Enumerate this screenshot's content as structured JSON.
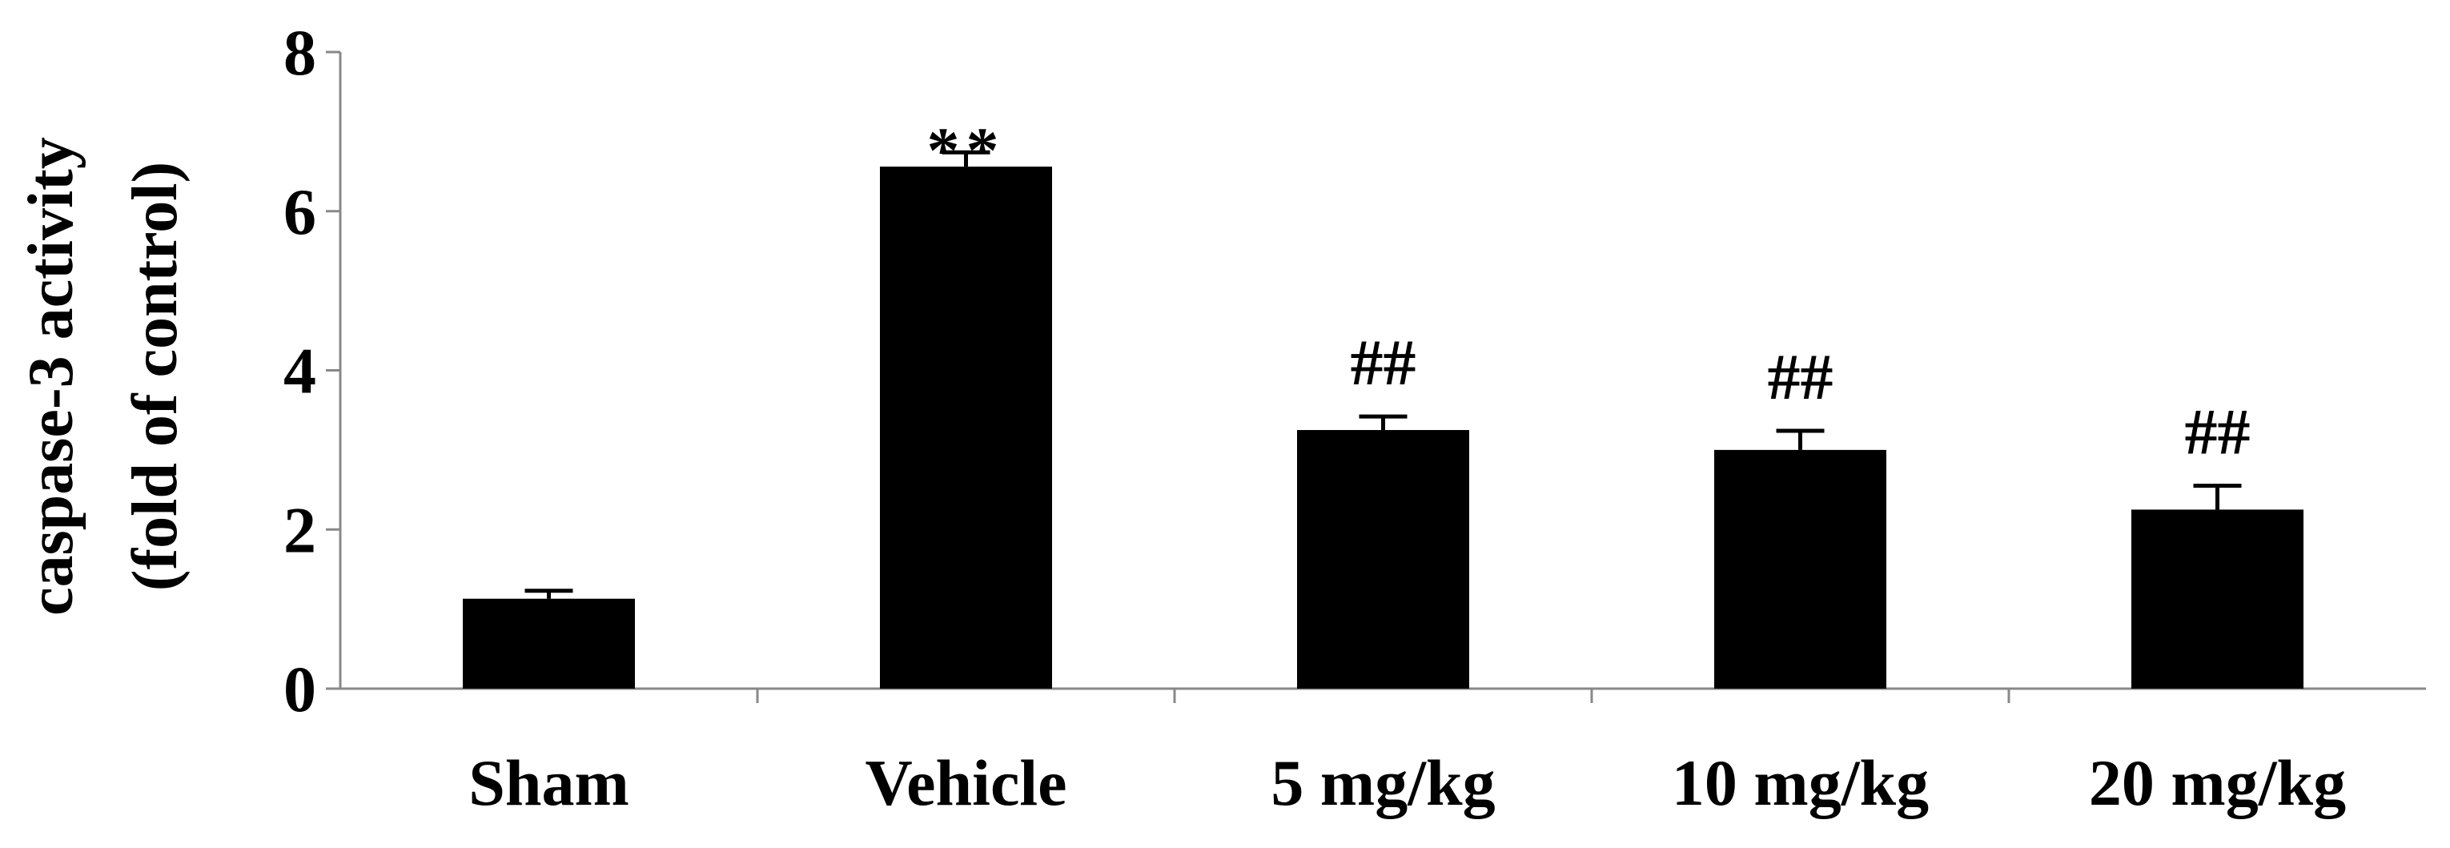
{
  "chart_data": {
    "type": "bar",
    "title": "",
    "xlabel": "",
    "ylabel": [
      "caspase-3 activity",
      "(fold of control)"
    ],
    "ylim": [
      0,
      8
    ],
    "yticks": [
      0,
      2,
      4,
      6,
      8
    ],
    "grid": false,
    "categories": [
      "Sham",
      "Vehicle",
      "5 mg/kg",
      "10 mg/kg",
      "20 mg/kg"
    ],
    "values": [
      1.13,
      6.56,
      3.25,
      3.0,
      2.25
    ],
    "errors": [
      0.1,
      0.18,
      0.17,
      0.24,
      0.3
    ],
    "annotations": [
      "",
      "**",
      "##",
      "##",
      "##"
    ],
    "bar_color": "#000000"
  }
}
